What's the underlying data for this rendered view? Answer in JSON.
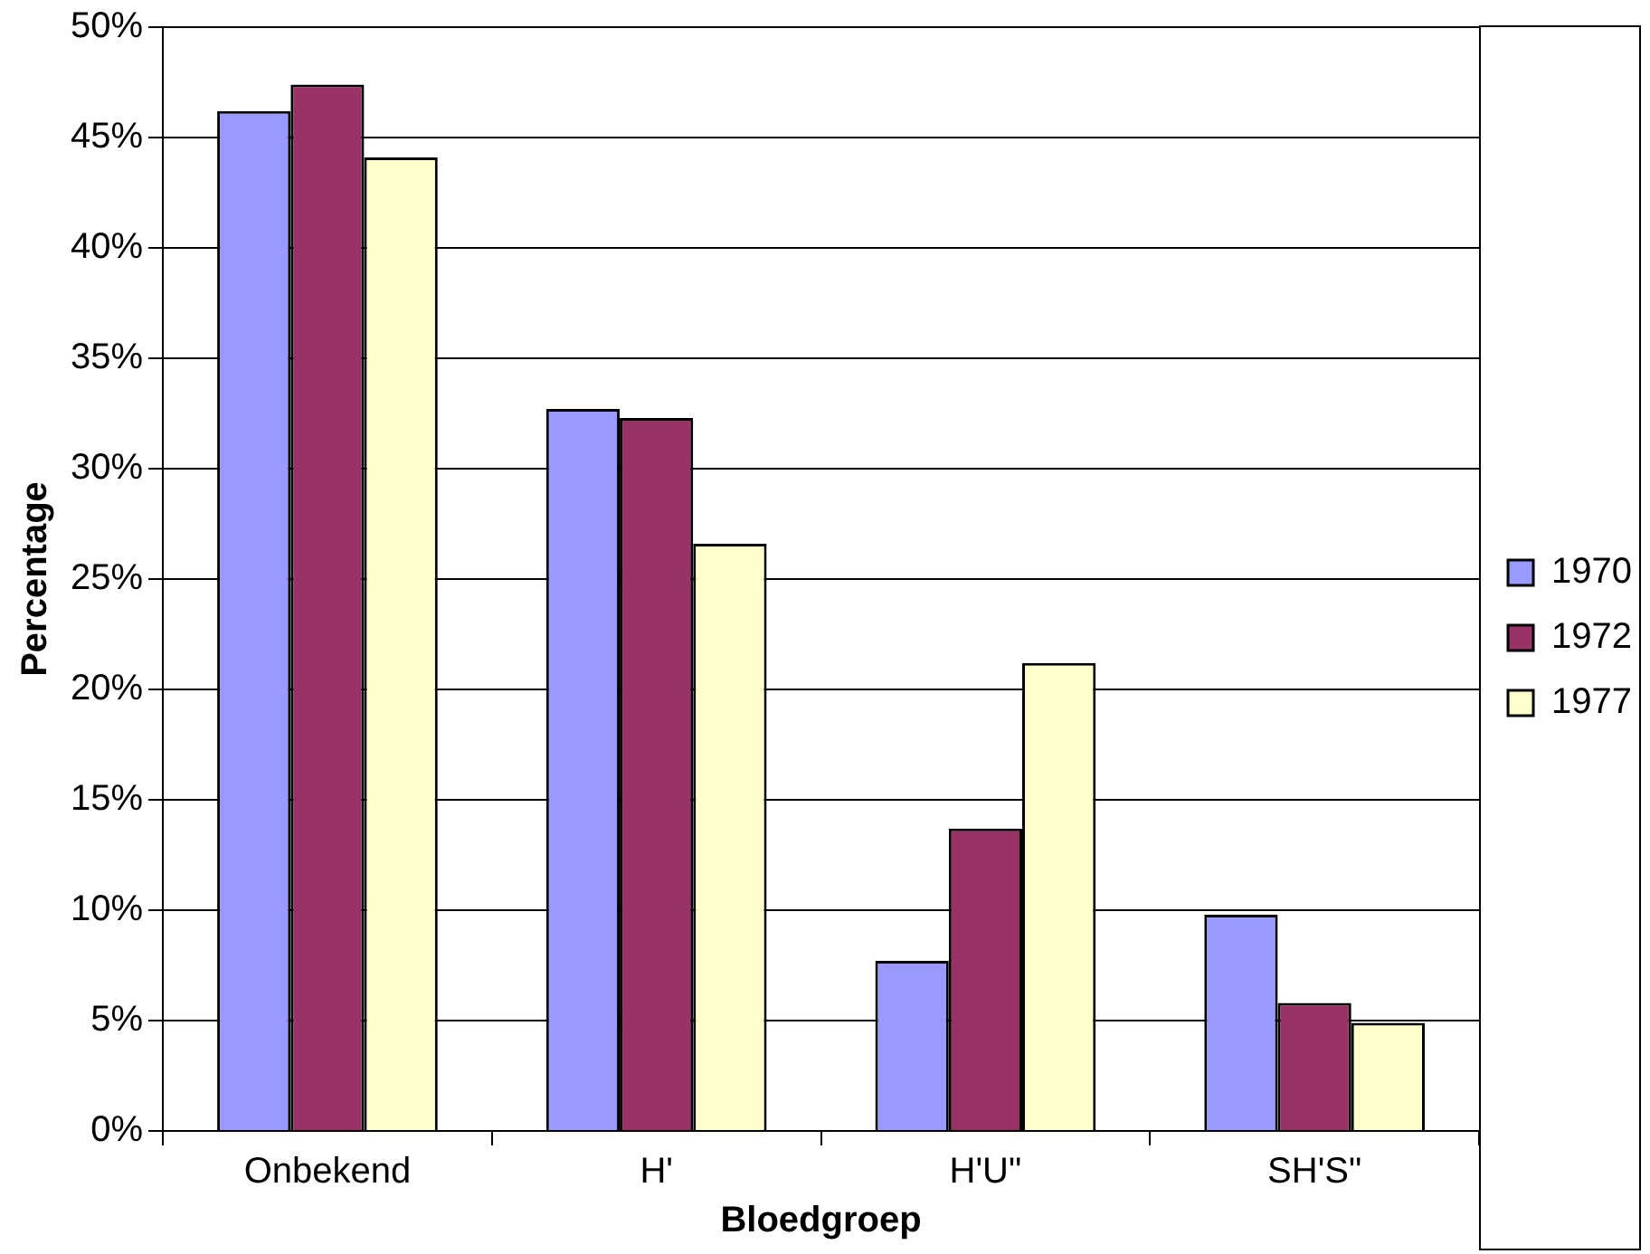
{
  "chart_data": {
    "type": "bar",
    "xlabel": "Bloedgroep",
    "ylabel": "Percentage",
    "categories": [
      "Onbekend",
      "H'",
      "H'U\"",
      "SH'S\""
    ],
    "series": [
      {
        "name": "1970",
        "color": "#9999ff",
        "values": [
          46.2,
          32.7,
          7.7,
          9.8
        ]
      },
      {
        "name": "1972",
        "color": "#993366",
        "values": [
          47.4,
          32.3,
          13.7,
          5.8
        ]
      },
      {
        "name": "1977",
        "color": "#ffffcc",
        "values": [
          44.1,
          26.6,
          21.2,
          4.9
        ]
      }
    ],
    "ylim": [
      0,
      50
    ],
    "yticks": [
      {
        "value": 0,
        "label": "0%"
      },
      {
        "value": 5,
        "label": "5%"
      },
      {
        "value": 10,
        "label": "10%"
      },
      {
        "value": 15,
        "label": "15%"
      },
      {
        "value": 20,
        "label": "20%"
      },
      {
        "value": 25,
        "label": "25%"
      },
      {
        "value": 30,
        "label": "30%"
      },
      {
        "value": 35,
        "label": "35%"
      },
      {
        "value": 40,
        "label": "40%"
      },
      {
        "value": 45,
        "label": "45%"
      },
      {
        "value": 50,
        "label": "50%"
      }
    ],
    "grid": "y",
    "legend": "right"
  }
}
